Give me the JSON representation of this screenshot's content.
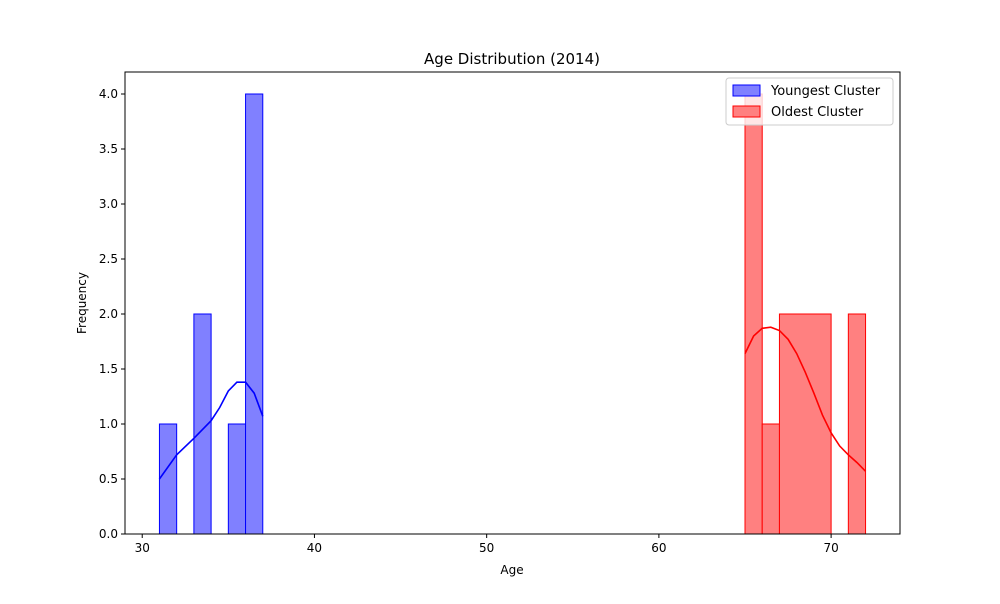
{
  "chart_data": {
    "type": "histogram",
    "title": "Age Distribution (2014)",
    "xlabel": "Age",
    "ylabel": "Frequency",
    "xlim": [
      29,
      74
    ],
    "ylim": [
      0,
      4.2
    ],
    "xticks": [
      30,
      40,
      50,
      60,
      70
    ],
    "xtick_labels": [
      "30",
      "40",
      "50",
      "60",
      "70"
    ],
    "yticks": [
      0,
      0.5,
      1.0,
      1.5,
      2.0,
      2.5,
      3.0,
      3.5,
      4.0
    ],
    "ytick_labels": [
      "0.0",
      "0.5",
      "1.0",
      "1.5",
      "2.0",
      "2.5",
      "3.0",
      "3.5",
      "4.0"
    ],
    "grid": false,
    "legend_position": "top-right",
    "series": [
      {
        "name": "Youngest Cluster",
        "color": "#0000ff",
        "fill": "#8080ff",
        "bins": [
          {
            "x0": 31,
            "x1": 32,
            "count": 1
          },
          {
            "x0": 32,
            "x1": 33,
            "count": 0
          },
          {
            "x0": 33,
            "x1": 34,
            "count": 2
          },
          {
            "x0": 34,
            "x1": 35,
            "count": 0
          },
          {
            "x0": 35,
            "x1": 36,
            "count": 1
          },
          {
            "x0": 36,
            "x1": 37,
            "count": 4
          }
        ],
        "kde": {
          "x": [
            31,
            32,
            33,
            34,
            34.5,
            35,
            35.5,
            36,
            36.5,
            37
          ],
          "y": [
            0.5,
            0.72,
            0.87,
            1.03,
            1.15,
            1.3,
            1.38,
            1.38,
            1.28,
            1.07
          ]
        }
      },
      {
        "name": "Oldest Cluster",
        "color": "#ff0000",
        "fill": "#ff8080",
        "bins": [
          {
            "x0": 65,
            "x1": 66,
            "count": 4
          },
          {
            "x0": 66,
            "x1": 67,
            "count": 1
          },
          {
            "x0": 67,
            "x1": 70,
            "count": 2
          },
          {
            "x0": 70,
            "x1": 71,
            "count": 0
          },
          {
            "x0": 71,
            "x1": 72,
            "count": 2
          }
        ],
        "kde": {
          "x": [
            65,
            65.5,
            66,
            66.5,
            67,
            67.5,
            68,
            68.5,
            69,
            69.5,
            70,
            70.5,
            71,
            71.5,
            72
          ],
          "y": [
            1.64,
            1.8,
            1.87,
            1.88,
            1.85,
            1.77,
            1.64,
            1.47,
            1.28,
            1.08,
            0.92,
            0.8,
            0.72,
            0.65,
            0.57
          ]
        }
      }
    ]
  }
}
